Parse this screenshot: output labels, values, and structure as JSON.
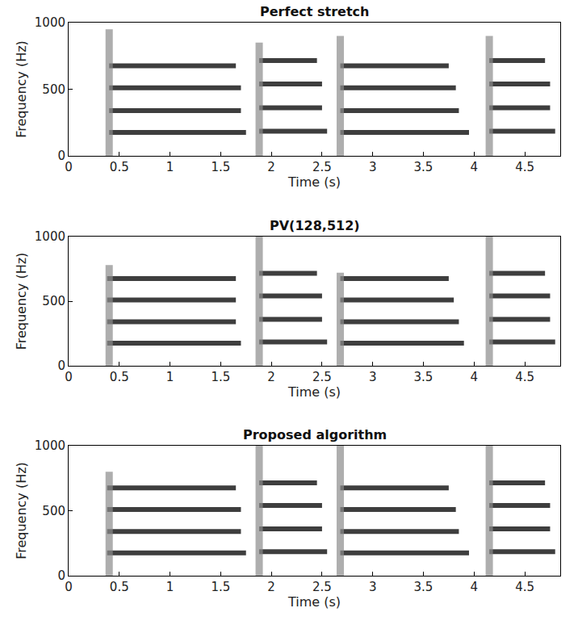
{
  "chart_data": [
    {
      "type": "line",
      "title": "Perfect stretch",
      "x_label": "Time (s)",
      "y_label": "Frequency (Hz)",
      "xlim": [
        0,
        4.85
      ],
      "xticks": [
        0,
        0.5,
        1,
        1.5,
        2,
        2.5,
        3,
        3.5,
        4,
        4.5
      ],
      "ylim": [
        0,
        1000
      ],
      "yticks": [
        0,
        500,
        1000
      ],
      "grid": false,
      "series": [
        {
          "color": "#2a2a2a",
          "line_style": "solid",
          "x": [
            0.4,
            1.75,
            null,
            0.4,
            1.7,
            null,
            0.4,
            1.7,
            null,
            0.4,
            1.65,
            null,
            1.88,
            2.55,
            null,
            1.88,
            2.5,
            null,
            1.88,
            2.5,
            null,
            1.88,
            2.45,
            null,
            2.68,
            3.95,
            null,
            2.68,
            3.85,
            null,
            2.68,
            3.82,
            null,
            2.68,
            3.75,
            null,
            4.15,
            4.8,
            null,
            4.15,
            4.75,
            null,
            4.15,
            4.75,
            null,
            4.15,
            4.7
          ],
          "values": [
            175,
            175,
            null,
            340,
            340,
            null,
            510,
            510,
            null,
            675,
            675,
            null,
            185,
            185,
            null,
            360,
            360,
            null,
            540,
            540,
            null,
            715,
            715,
            null,
            175,
            175,
            null,
            340,
            340,
            null,
            510,
            510,
            null,
            675,
            675,
            null,
            185,
            185,
            null,
            360,
            360,
            null,
            540,
            540,
            null,
            715,
            715
          ]
        },
        {
          "color": "#8c8c8c",
          "line_style": "solid",
          "x": [
            0.4,
            0.4,
            null,
            1.88,
            1.88,
            null,
            2.68,
            2.68,
            null,
            4.15,
            4.15
          ],
          "values": [
            0,
            950,
            null,
            0,
            850,
            null,
            0,
            900,
            null,
            0,
            900
          ]
        }
      ]
    },
    {
      "type": "line",
      "title": "PV(128,512)",
      "x_label": "Time (s)",
      "y_label": "Frequency (Hz)",
      "xlim": [
        0,
        4.85
      ],
      "xticks": [
        0,
        0.5,
        1,
        1.5,
        2,
        2.5,
        3,
        3.5,
        4,
        4.5
      ],
      "ylim": [
        0,
        1000
      ],
      "yticks": [
        0,
        500,
        1000
      ],
      "grid": false,
      "series": [
        {
          "color": "#2a2a2a",
          "line_style": "solid",
          "x": [
            0.38,
            1.7,
            null,
            0.38,
            1.65,
            null,
            0.38,
            1.65,
            null,
            0.38,
            1.65,
            null,
            1.88,
            2.55,
            null,
            1.88,
            2.5,
            null,
            1.88,
            2.5,
            null,
            1.88,
            2.45,
            null,
            2.68,
            3.9,
            null,
            2.68,
            3.85,
            null,
            2.68,
            3.8,
            null,
            2.68,
            3.75,
            null,
            4.15,
            4.8,
            null,
            4.15,
            4.75,
            null,
            4.15,
            4.75,
            null,
            4.15,
            4.7
          ],
          "values": [
            175,
            175,
            null,
            340,
            340,
            null,
            510,
            510,
            null,
            675,
            675,
            null,
            185,
            185,
            null,
            360,
            360,
            null,
            540,
            540,
            null,
            715,
            715,
            null,
            175,
            175,
            null,
            340,
            340,
            null,
            510,
            510,
            null,
            675,
            675,
            null,
            185,
            185,
            null,
            360,
            360,
            null,
            540,
            540,
            null,
            715,
            715
          ]
        },
        {
          "color": "#8c8c8c",
          "line_style": "solid",
          "x": [
            0.4,
            0.4,
            null,
            1.88,
            1.88,
            null,
            2.68,
            2.68,
            null,
            4.15,
            4.15
          ],
          "values": [
            0,
            780,
            null,
            0,
            1000,
            null,
            0,
            720,
            null,
            0,
            1000
          ]
        }
      ]
    },
    {
      "type": "line",
      "title": "Proposed algorithm",
      "x_label": "Time (s)",
      "y_label": "Frequency (Hz)",
      "xlim": [
        0,
        4.85
      ],
      "xticks": [
        0,
        0.5,
        1,
        1.5,
        2,
        2.5,
        3,
        3.5,
        4,
        4.5
      ],
      "ylim": [
        0,
        1000
      ],
      "yticks": [
        0,
        500,
        1000
      ],
      "grid": false,
      "series": [
        {
          "color": "#2a2a2a",
          "line_style": "solid",
          "x": [
            0.38,
            1.75,
            null,
            0.38,
            1.7,
            null,
            0.38,
            1.7,
            null,
            0.38,
            1.65,
            null,
            1.88,
            2.55,
            null,
            1.88,
            2.5,
            null,
            1.88,
            2.5,
            null,
            1.88,
            2.45,
            null,
            2.68,
            3.95,
            null,
            2.68,
            3.85,
            null,
            2.68,
            3.82,
            null,
            2.68,
            3.75,
            null,
            4.15,
            4.8,
            null,
            4.15,
            4.75,
            null,
            4.15,
            4.75,
            null,
            4.15,
            4.7
          ],
          "values": [
            175,
            175,
            null,
            340,
            340,
            null,
            510,
            510,
            null,
            675,
            675,
            null,
            185,
            185,
            null,
            360,
            360,
            null,
            540,
            540,
            null,
            715,
            715,
            null,
            175,
            175,
            null,
            340,
            340,
            null,
            510,
            510,
            null,
            675,
            675,
            null,
            185,
            185,
            null,
            360,
            360,
            null,
            540,
            540,
            null,
            715,
            715
          ]
        },
        {
          "color": "#8c8c8c",
          "line_style": "solid",
          "x": [
            0.4,
            0.4,
            null,
            1.88,
            1.88,
            null,
            2.68,
            2.68,
            null,
            4.15,
            4.15
          ],
          "values": [
            0,
            800,
            null,
            0,
            1000,
            null,
            0,
            1000,
            null,
            0,
            1000
          ]
        }
      ]
    }
  ]
}
